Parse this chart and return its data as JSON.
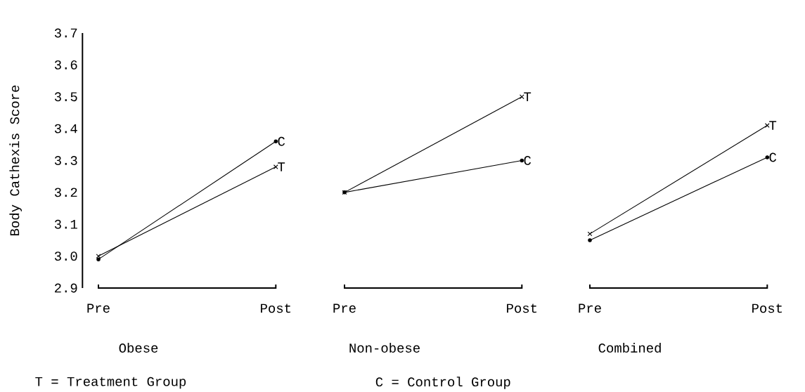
{
  "chart_data": [
    {
      "type": "line",
      "xlabel": "Obese",
      "ylabel": "Body Cathexis Score",
      "categories": [
        "Pre",
        "Post"
      ],
      "ylim": [
        2.9,
        3.7
      ],
      "yticks": [
        {
          "value": 2.9,
          "label": "2.9"
        },
        {
          "value": 3.0,
          "label": "3.0"
        },
        3.1,
        3.2,
        3.3,
        3.4,
        3.5,
        3.6,
        3.7
      ],
      "series": [
        {
          "name": "T",
          "color": "#000000",
          "marker": "cross",
          "values": [
            3.0,
            3.28
          ]
        },
        {
          "name": "C",
          "color": "#000000",
          "marker": "circle",
          "values": [
            2.99,
            3.36
          ]
        }
      ],
      "annotations": [
        "T = Treatment Group"
      ]
    },
    {
      "type": "line",
      "xlabel": "Non-obese",
      "categories": [
        "Pre",
        "Post"
      ],
      "ylim": [
        2.9,
        3.7
      ],
      "tick_labels": "x",
      "series": [
        {
          "name": "T",
          "color": "#000000",
          "marker": "cross",
          "values": [
            3.2,
            3.5
          ]
        },
        {
          "name": "C",
          "color": "#000000",
          "marker": "circle",
          "values": [
            3.2,
            3.3
          ]
        }
      ],
      "annotations": [
        "C = Control Group"
      ]
    },
    {
      "type": "line",
      "xlabel": "Combined",
      "categories": [
        "Pre",
        "Post"
      ],
      "ylim": [
        2.9,
        3.7
      ],
      "tick_labels": "x",
      "series": [
        {
          "name": "T",
          "color": "#000000",
          "marker": "cross",
          "values": [
            3.07,
            3.41
          ]
        },
        {
          "name": "C",
          "color": "#000000",
          "marker": "circle",
          "values": [
            3.05,
            3.31
          ]
        }
      ]
    }
  ]
}
